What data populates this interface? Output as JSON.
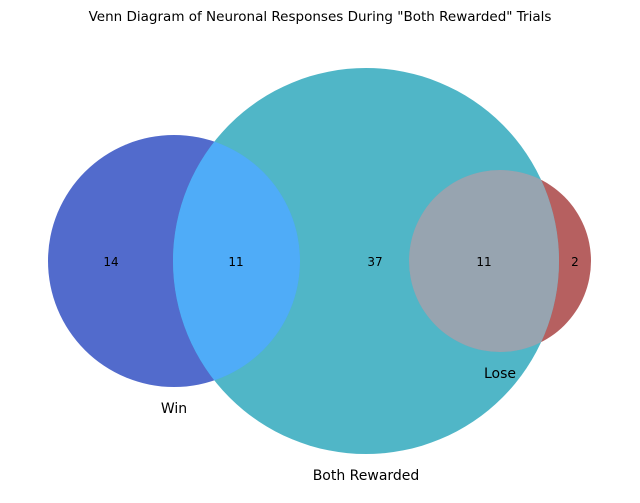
{
  "chart_data": {
    "type": "venn",
    "title": "Venn Diagram of Neuronal Responses During \"Both Rewarded\" Trials",
    "sets": [
      {
        "id": "win",
        "label": "Win",
        "color": "#3f5bc6"
      },
      {
        "id": "both",
        "label": "Both Rewarded",
        "color": "#41b0c2"
      },
      {
        "id": "lose",
        "label": "Lose",
        "color": "#a94444"
      }
    ],
    "regions": [
      {
        "sets": [
          "win"
        ],
        "count": "14"
      },
      {
        "sets": [
          "win",
          "both"
        ],
        "count": "11"
      },
      {
        "sets": [
          "both"
        ],
        "count": "37"
      },
      {
        "sets": [
          "both",
          "lose"
        ],
        "count": "11"
      },
      {
        "sets": [
          "lose"
        ],
        "count": "2"
      }
    ],
    "overlap_colors": {
      "win_both": "#4facf8",
      "both_lose": "#97a4b0"
    }
  }
}
